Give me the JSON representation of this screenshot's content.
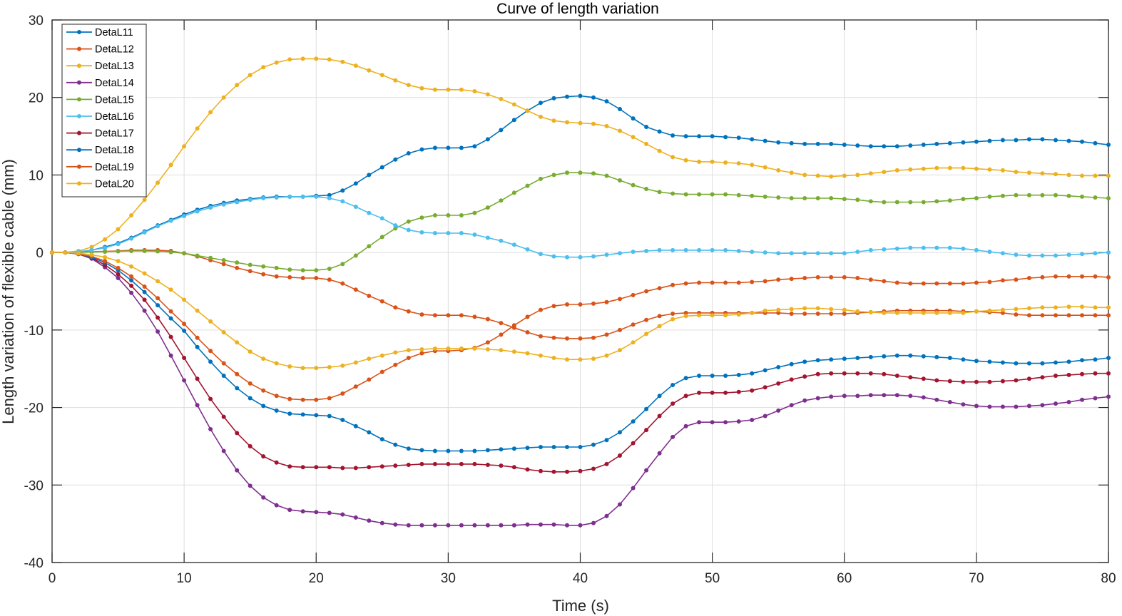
{
  "chart_data": {
    "type": "line",
    "title": "Curve of length variation",
    "xlabel": "Time (s)",
    "ylabel": "Length variation of flexible cable (mm)",
    "xlim": [
      0,
      80
    ],
    "ylim": [
      -40,
      30
    ],
    "xticks": [
      "0",
      "10",
      "20",
      "30",
      "40",
      "50",
      "60",
      "70",
      "80"
    ],
    "yticks": [
      "30",
      "20",
      "10",
      "0",
      "-10",
      "-20",
      "-30",
      "-40"
    ],
    "grid": true,
    "legend_position": "top-left",
    "x_step": 1,
    "series": [
      {
        "name": "DetaL11",
        "color": "#0072BD",
        "values": [
          0,
          0,
          0.1,
          0.3,
          0.7,
          1.2,
          1.9,
          2.7,
          3.5,
          4.2,
          4.9,
          5.5,
          6,
          6.4,
          6.7,
          6.9,
          7.1,
          7.2,
          7.2,
          7.2,
          7.3,
          7.4,
          8,
          8.9,
          10,
          11,
          12,
          12.8,
          13.3,
          13.5,
          13.5,
          13.5,
          13.7,
          14.6,
          15.8,
          17.1,
          18.3,
          19.3,
          19.9,
          20.1,
          20.2,
          20,
          19.5,
          18.5,
          17.3,
          16.2,
          15.6,
          15.1,
          15,
          15,
          15,
          14.9,
          14.8,
          14.6,
          14.4,
          14.2,
          14.1,
          14,
          14,
          14,
          13.9,
          13.8,
          13.7,
          13.7,
          13.7,
          13.8,
          13.9,
          14,
          14.1,
          14.2,
          14.3,
          14.4,
          14.5,
          14.5,
          14.6,
          14.6,
          14.5,
          14.4,
          14.3,
          14.1,
          13.9
        ]
      },
      {
        "name": "DetaL12",
        "color": "#D95319",
        "values": [
          0,
          0,
          0.05,
          0.1,
          0.15,
          0.2,
          0.3,
          0.3,
          0.3,
          0.2,
          -0.1,
          -0.5,
          -1,
          -1.5,
          -2,
          -2.4,
          -2.8,
          -3.1,
          -3.2,
          -3.3,
          -3.3,
          -3.5,
          -4,
          -4.8,
          -5.6,
          -6.3,
          -7.1,
          -7.6,
          -8,
          -8.1,
          -8.1,
          -8.1,
          -8.3,
          -8.6,
          -9.1,
          -9.7,
          -10.3,
          -10.8,
          -11,
          -11.1,
          -11.1,
          -11,
          -10.6,
          -10,
          -9.3,
          -8.7,
          -8.2,
          -7.9,
          -7.8,
          -7.8,
          -7.8,
          -7.8,
          -7.8,
          -7.8,
          -7.8,
          -7.8,
          -7.9,
          -7.9,
          -7.9,
          -7.9,
          -7.9,
          -7.8,
          -7.7,
          -7.6,
          -7.5,
          -7.5,
          -7.5,
          -7.5,
          -7.5,
          -7.6,
          -7.6,
          -7.7,
          -7.8,
          -8,
          -8.1,
          -8.1,
          -8.1,
          -8.1,
          -8.1,
          -8.1,
          -8.1
        ]
      },
      {
        "name": "DetaL13",
        "color": "#EDB120",
        "values": [
          0,
          0,
          0.2,
          0.7,
          1.7,
          3,
          4.8,
          6.8,
          9,
          11.3,
          13.7,
          16,
          18.1,
          20,
          21.6,
          22.9,
          23.9,
          24.5,
          24.9,
          25,
          25,
          24.9,
          24.6,
          24.1,
          23.5,
          22.9,
          22.2,
          21.6,
          21.2,
          21,
          21,
          21,
          20.8,
          20.4,
          19.8,
          19.1,
          18.3,
          17.5,
          17,
          16.8,
          16.7,
          16.6,
          16.3,
          15.7,
          14.9,
          14,
          13.1,
          12.3,
          11.9,
          11.7,
          11.7,
          11.6,
          11.5,
          11.3,
          11,
          10.6,
          10.3,
          10,
          9.9,
          9.8,
          9.9,
          10,
          10.2,
          10.4,
          10.6,
          10.7,
          10.8,
          10.9,
          10.9,
          10.9,
          10.8,
          10.7,
          10.6,
          10.4,
          10.3,
          10.2,
          10.1,
          10,
          9.9,
          9.9,
          9.9
        ]
      },
      {
        "name": "DetaL14",
        "color": "#7E2F8E",
        "values": [
          0,
          0,
          -0.2,
          -0.8,
          -1.9,
          -3.3,
          -5.2,
          -7.5,
          -10.2,
          -13.3,
          -16.5,
          -19.7,
          -22.8,
          -25.6,
          -28.1,
          -30.1,
          -31.6,
          -32.6,
          -33.2,
          -33.4,
          -33.5,
          -33.6,
          -33.8,
          -34.2,
          -34.6,
          -34.9,
          -35.1,
          -35.2,
          -35.2,
          -35.2,
          -35.2,
          -35.2,
          -35.2,
          -35.2,
          -35.2,
          -35.2,
          -35.1,
          -35.1,
          -35.1,
          -35.2,
          -35.2,
          -34.9,
          -34,
          -32.5,
          -30.4,
          -28.1,
          -25.9,
          -23.8,
          -22.4,
          -21.9,
          -21.9,
          -21.9,
          -21.8,
          -21.6,
          -21.1,
          -20.4,
          -19.7,
          -19.1,
          -18.8,
          -18.6,
          -18.5,
          -18.5,
          -18.4,
          -18.4,
          -18.4,
          -18.5,
          -18.7,
          -19,
          -19.3,
          -19.6,
          -19.8,
          -19.9,
          -19.9,
          -19.9,
          -19.8,
          -19.7,
          -19.5,
          -19.3,
          -19,
          -18.8,
          -18.6
        ]
      },
      {
        "name": "DetaL15",
        "color": "#77AC30",
        "values": [
          0,
          0,
          0,
          0.05,
          0.1,
          0.15,
          0.2,
          0.2,
          0.15,
          0.05,
          -0.1,
          -0.4,
          -0.7,
          -1,
          -1.3,
          -1.6,
          -1.8,
          -2,
          -2.2,
          -2.3,
          -2.3,
          -2.1,
          -1.5,
          -0.4,
          0.8,
          2,
          3.1,
          4,
          4.5,
          4.8,
          4.8,
          4.8,
          5.1,
          5.8,
          6.7,
          7.7,
          8.6,
          9.5,
          10,
          10.3,
          10.3,
          10.2,
          9.9,
          9.3,
          8.7,
          8.2,
          7.8,
          7.6,
          7.5,
          7.5,
          7.5,
          7.5,
          7.4,
          7.3,
          7.2,
          7.1,
          7,
          7,
          7,
          7,
          6.9,
          6.8,
          6.6,
          6.5,
          6.5,
          6.5,
          6.5,
          6.6,
          6.7,
          6.9,
          7,
          7.2,
          7.3,
          7.4,
          7.4,
          7.4,
          7.4,
          7.3,
          7.2,
          7.1,
          7
        ]
      },
      {
        "name": "DetaL16",
        "color": "#4DBEEE",
        "values": [
          0,
          0,
          0.1,
          0.3,
          0.6,
          1.1,
          1.8,
          2.6,
          3.4,
          4.1,
          4.7,
          5.3,
          5.8,
          6.2,
          6.5,
          6.8,
          7,
          7.1,
          7.2,
          7.2,
          7.2,
          7,
          6.6,
          5.9,
          5.1,
          4.4,
          3.5,
          2.9,
          2.6,
          2.5,
          2.5,
          2.5,
          2.3,
          1.9,
          1.5,
          1,
          0.4,
          -0.2,
          -0.5,
          -0.6,
          -0.6,
          -0.5,
          -0.3,
          -0.1,
          0.1,
          0.2,
          0.3,
          0.3,
          0.3,
          0.3,
          0.3,
          0.3,
          0.2,
          0.1,
          0,
          -0.1,
          -0.1,
          -0.1,
          -0.1,
          -0.1,
          -0.1,
          0.1,
          0.3,
          0.4,
          0.5,
          0.6,
          0.6,
          0.6,
          0.6,
          0.5,
          0.3,
          0.1,
          -0.1,
          -0.3,
          -0.4,
          -0.4,
          -0.4,
          -0.3,
          -0.2,
          -0.1,
          0
        ]
      },
      {
        "name": "DetaL17",
        "color": "#A2142F",
        "values": [
          0,
          0,
          -0.2,
          -0.7,
          -1.6,
          -2.8,
          -4.3,
          -6.1,
          -8.4,
          -10.9,
          -13.6,
          -16.3,
          -18.9,
          -21.2,
          -23.3,
          -25,
          -26.3,
          -27.1,
          -27.6,
          -27.7,
          -27.7,
          -27.7,
          -27.8,
          -27.8,
          -27.7,
          -27.6,
          -27.5,
          -27.4,
          -27.3,
          -27.3,
          -27.3,
          -27.3,
          -27.3,
          -27.4,
          -27.5,
          -27.7,
          -28,
          -28.2,
          -28.3,
          -28.3,
          -28.2,
          -27.9,
          -27.3,
          -26.2,
          -24.6,
          -22.9,
          -21.1,
          -19.5,
          -18.5,
          -18.1,
          -18.1,
          -18.1,
          -18,
          -17.8,
          -17.4,
          -16.9,
          -16.4,
          -16,
          -15.7,
          -15.6,
          -15.6,
          -15.6,
          -15.6,
          -15.7,
          -15.9,
          -16.1,
          -16.3,
          -16.5,
          -16.6,
          -16.7,
          -16.7,
          -16.7,
          -16.6,
          -16.5,
          -16.3,
          -16.1,
          -15.9,
          -15.8,
          -15.7,
          -15.6,
          -15.6
        ]
      },
      {
        "name": "DetaL18",
        "color": "#0072BD",
        "values": [
          0,
          0,
          -0.2,
          -0.6,
          -1.3,
          -2.3,
          -3.6,
          -5.1,
          -6.8,
          -8.5,
          -10.1,
          -12.2,
          -14.1,
          -15.9,
          -17.5,
          -18.8,
          -19.8,
          -20.4,
          -20.8,
          -20.9,
          -21,
          -21.1,
          -21.6,
          -22.4,
          -23.2,
          -24.1,
          -24.8,
          -25.3,
          -25.5,
          -25.6,
          -25.6,
          -25.6,
          -25.6,
          -25.5,
          -25.4,
          -25.3,
          -25.2,
          -25.1,
          -25.1,
          -25.1,
          -25.1,
          -24.8,
          -24.2,
          -23.2,
          -21.8,
          -20.2,
          -18.5,
          -17.1,
          -16.2,
          -15.9,
          -15.9,
          -15.9,
          -15.8,
          -15.6,
          -15.2,
          -14.8,
          -14.4,
          -14.1,
          -13.9,
          -13.8,
          -13.7,
          -13.6,
          -13.5,
          -13.4,
          -13.3,
          -13.3,
          -13.4,
          -13.5,
          -13.6,
          -13.8,
          -14,
          -14.1,
          -14.2,
          -14.3,
          -14.3,
          -14.3,
          -14.2,
          -14.1,
          -13.9,
          -13.8,
          -13.6
        ]
      },
      {
        "name": "DetaL19",
        "color": "#D95319",
        "values": [
          0,
          0,
          -0.2,
          -0.5,
          -1.1,
          -2,
          -3.1,
          -4.4,
          -5.9,
          -7.6,
          -9.2,
          -11,
          -12.7,
          -14.3,
          -15.7,
          -16.9,
          -17.8,
          -18.5,
          -18.9,
          -19,
          -19,
          -18.8,
          -18.2,
          -17.3,
          -16.4,
          -15.4,
          -14.5,
          -13.6,
          -13,
          -12.7,
          -12.7,
          -12.6,
          -12.3,
          -11.6,
          -10.6,
          -9.4,
          -8.3,
          -7.4,
          -6.9,
          -6.7,
          -6.7,
          -6.6,
          -6.4,
          -6,
          -5.5,
          -5,
          -4.6,
          -4.2,
          -4,
          -3.9,
          -3.9,
          -3.9,
          -3.9,
          -3.8,
          -3.7,
          -3.5,
          -3.4,
          -3.3,
          -3.2,
          -3.2,
          -3.2,
          -3.3,
          -3.5,
          -3.7,
          -3.9,
          -4,
          -4,
          -4,
          -4,
          -4,
          -3.9,
          -3.8,
          -3.6,
          -3.5,
          -3.3,
          -3.2,
          -3.1,
          -3.1,
          -3.1,
          -3.1,
          -3.2
        ]
      },
      {
        "name": "DetaL20",
        "color": "#EDB120",
        "values": [
          0,
          0,
          -0.1,
          -0.3,
          -0.6,
          -1.1,
          -1.8,
          -2.7,
          -3.7,
          -4.8,
          -6.1,
          -7.5,
          -8.9,
          -10.3,
          -11.6,
          -12.8,
          -13.7,
          -14.3,
          -14.7,
          -14.9,
          -14.9,
          -14.8,
          -14.6,
          -14.2,
          -13.7,
          -13.3,
          -12.9,
          -12.6,
          -12.5,
          -12.4,
          -12.4,
          -12.4,
          -12.4,
          -12.5,
          -12.6,
          -12.8,
          -13,
          -13.3,
          -13.6,
          -13.8,
          -13.8,
          -13.7,
          -13.3,
          -12.6,
          -11.6,
          -10.5,
          -9.5,
          -8.6,
          -8.2,
          -8.1,
          -8.1,
          -8.1,
          -8,
          -7.8,
          -7.5,
          -7.4,
          -7.3,
          -7.2,
          -7.2,
          -7.3,
          -7.4,
          -7.6,
          -7.7,
          -7.8,
          -7.8,
          -7.8,
          -7.8,
          -7.8,
          -7.8,
          -7.8,
          -7.6,
          -7.5,
          -7.4,
          -7.3,
          -7.2,
          -7.1,
          -7.1,
          -7,
          -7,
          -7.1,
          -7.1
        ]
      }
    ]
  }
}
